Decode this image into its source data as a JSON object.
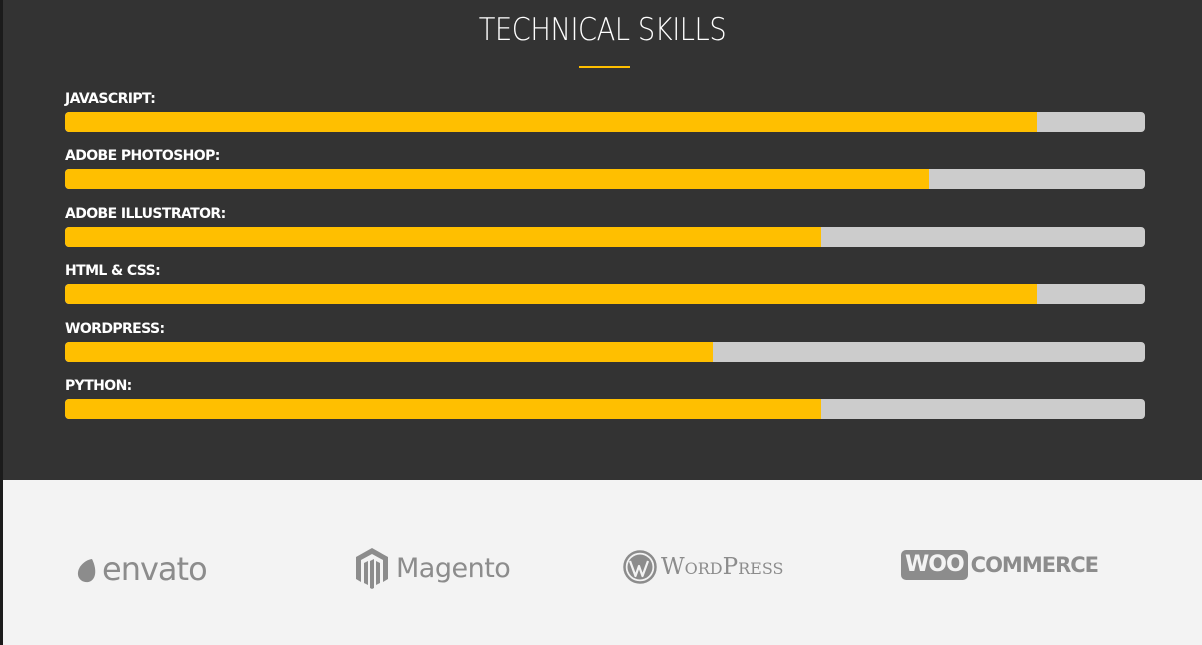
{
  "section_title": "TECHNICAL SKILLS",
  "skills": [
    {
      "label": "JAVASCRIPT:",
      "percent": 90
    },
    {
      "label": "ADOBE PHOTOSHOP:",
      "percent": 80
    },
    {
      "label": "ADOBE ILLUSTRATOR:",
      "percent": 70
    },
    {
      "label": "HTML & CSS:",
      "percent": 90
    },
    {
      "label": "WORDPRESS:",
      "percent": 60
    },
    {
      "label": "PYTHON:",
      "percent": 70
    }
  ],
  "logos": {
    "envato": "envato",
    "magento": "Magento",
    "wordpress": "WordPress",
    "woo_box": "WOO",
    "woo_rest": "COMMERCE"
  },
  "colors": {
    "accent": "#ffbf00",
    "track": "#cccccc",
    "dark_bg": "#333333",
    "light_bg": "#f3f3f3",
    "logo_gray": "#8c8c8c"
  }
}
